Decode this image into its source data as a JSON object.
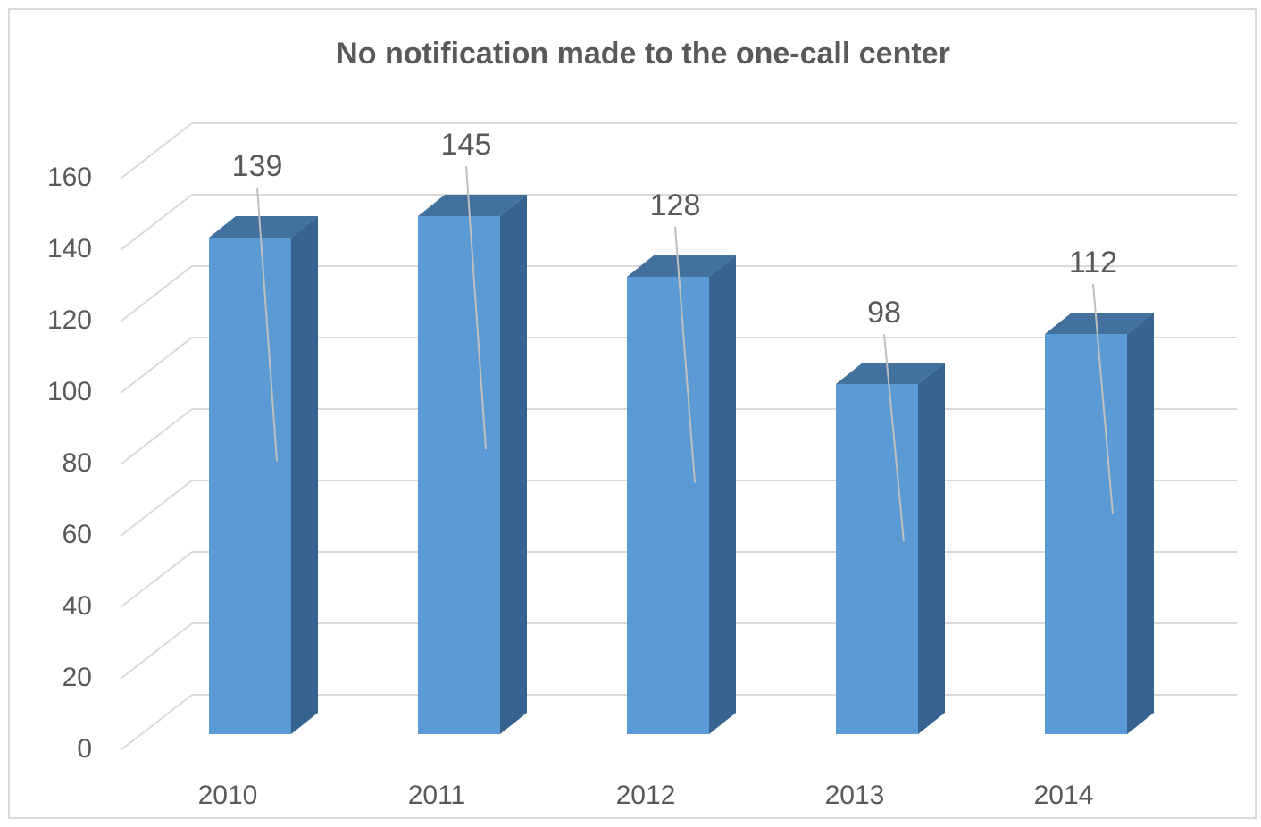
{
  "chart_data": {
    "type": "bar3d",
    "title": "No notification made to the one-call center",
    "categories": [
      "2010",
      "2011",
      "2012",
      "2013",
      "2014"
    ],
    "values": [
      139,
      145,
      128,
      98,
      112
    ],
    "color": "#5b9bd5",
    "ylim": [
      0,
      160
    ],
    "yticks": [
      0,
      20,
      40,
      60,
      80,
      100,
      120,
      140,
      160
    ],
    "grid": true
  }
}
